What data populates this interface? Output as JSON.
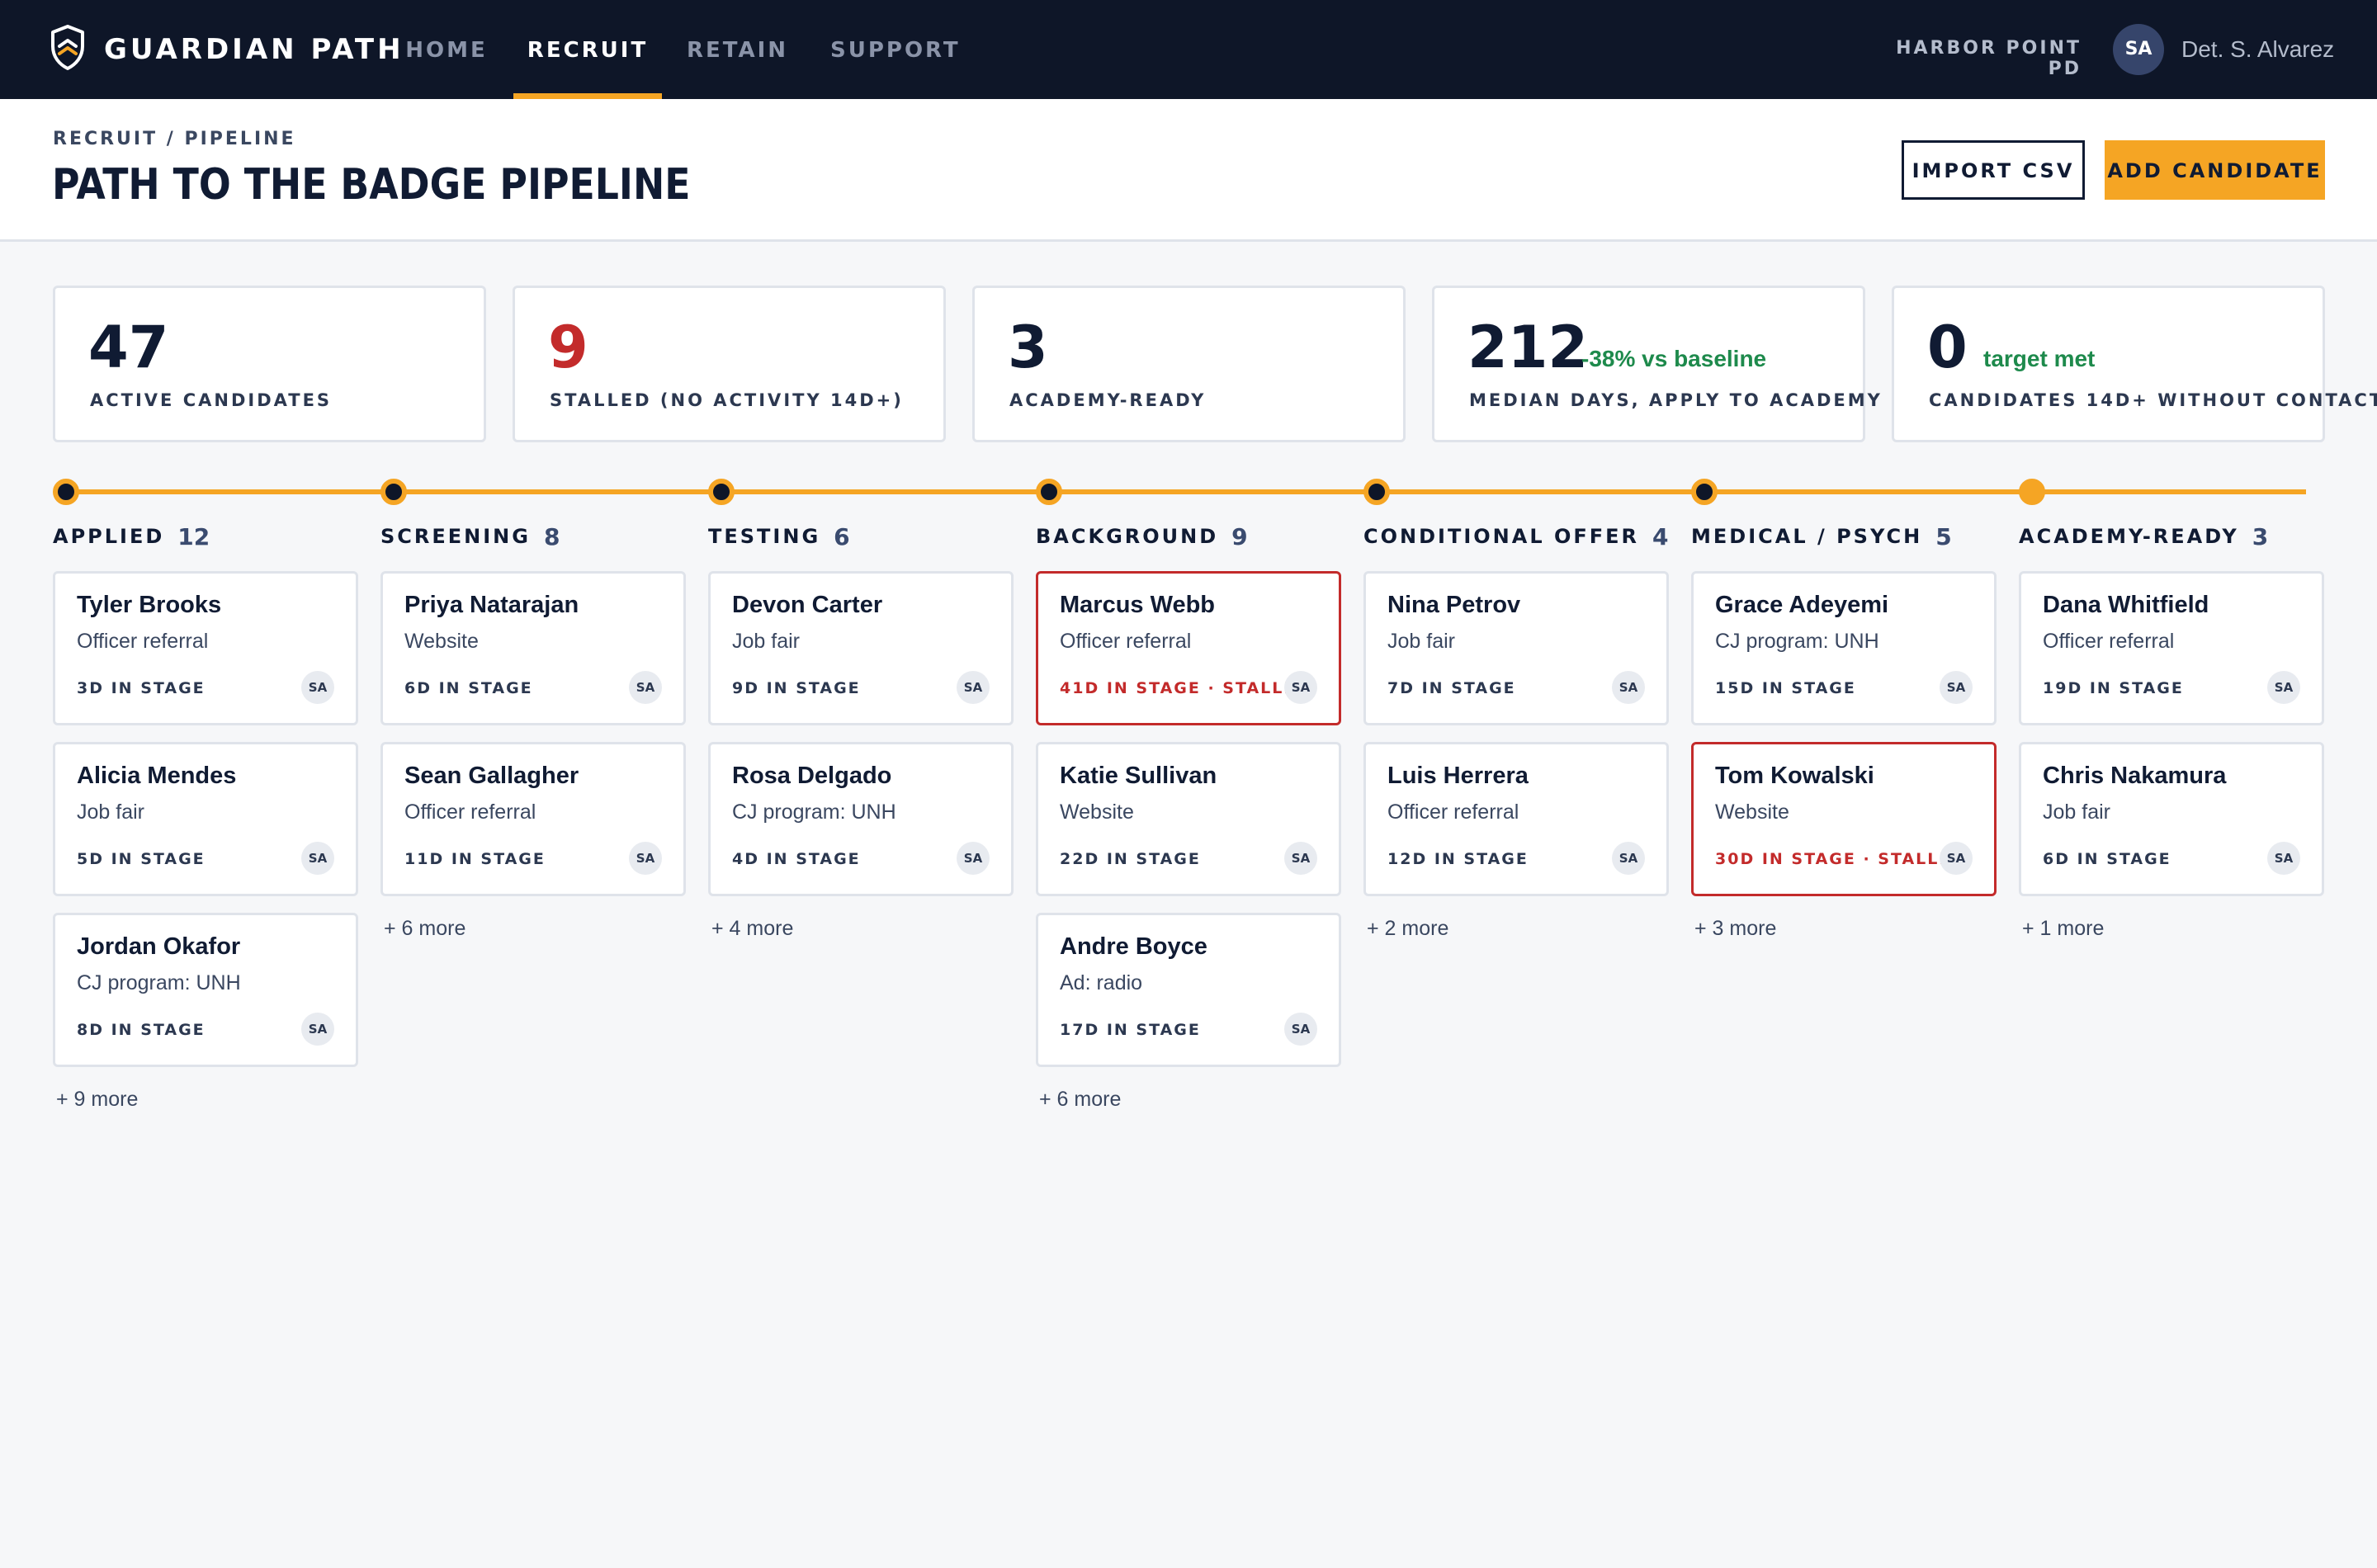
{
  "app": {
    "name": "GUARDIAN PATH",
    "logo_icon": "shield-chevron-icon"
  },
  "nav": [
    {
      "label": "HOME",
      "active": false
    },
    {
      "label": "RECRUIT",
      "active": true
    },
    {
      "label": "RETAIN",
      "active": false
    },
    {
      "label": "SUPPORT",
      "active": false
    }
  ],
  "org": "HARBOR POINT PD",
  "user": {
    "initials": "SA",
    "name": "Det. S. Alvarez"
  },
  "header": {
    "breadcrumb": "RECRUIT / PIPELINE",
    "title": "PATH TO THE BADGE PIPELINE",
    "import_label": "IMPORT CSV",
    "add_label": "ADD CANDIDATE"
  },
  "kpis": [
    {
      "value": "47",
      "label": "ACTIVE CANDIDATES",
      "delta": "",
      "alert": false
    },
    {
      "value": "9",
      "label": "STALLED (NO ACTIVITY 14D+)",
      "delta": "",
      "alert": true
    },
    {
      "value": "3",
      "label": "ACADEMY-READY",
      "delta": "",
      "alert": false
    },
    {
      "value": "212",
      "label": "MEDIAN DAYS, APPLY TO ACADEMY",
      "delta": "-38% vs baseline",
      "alert": false
    },
    {
      "value": "0",
      "label": "CANDIDATES 14D+ WITHOUT CONTACT",
      "delta": "target met",
      "alert": false
    }
  ],
  "colors": {
    "accent": "#f5a524",
    "navy": "#0e1628",
    "alert": "#c32b2b",
    "positive": "#1e8a4c"
  },
  "stages": [
    {
      "title": "APPLIED",
      "count": "12",
      "more": "+ 9 more",
      "cards": [
        {
          "name": "Tyler Brooks",
          "source": "Officer referral",
          "meta": "3D IN STAGE",
          "stalled": false,
          "owner": "SA"
        },
        {
          "name": "Alicia Mendes",
          "source": "Job fair",
          "meta": "5D IN STAGE",
          "stalled": false,
          "owner": "SA"
        },
        {
          "name": "Jordan Okafor",
          "source": "CJ program: UNH",
          "meta": "8D IN STAGE",
          "stalled": false,
          "owner": "SA"
        }
      ]
    },
    {
      "title": "SCREENING",
      "count": "8",
      "more": "+ 6 more",
      "cards": [
        {
          "name": "Priya Natarajan",
          "source": "Website",
          "meta": "6D IN STAGE",
          "stalled": false,
          "owner": "SA"
        },
        {
          "name": "Sean Gallagher",
          "source": "Officer referral",
          "meta": "11D IN STAGE",
          "stalled": false,
          "owner": "SA"
        }
      ]
    },
    {
      "title": "TESTING",
      "count": "6",
      "more": "+ 4 more",
      "cards": [
        {
          "name": "Devon Carter",
          "source": "Job fair",
          "meta": "9D IN STAGE",
          "stalled": false,
          "owner": "SA"
        },
        {
          "name": "Rosa Delgado",
          "source": "CJ program: UNH",
          "meta": "4D IN STAGE",
          "stalled": false,
          "owner": "SA"
        }
      ]
    },
    {
      "title": "BACKGROUND",
      "count": "9",
      "more": "+ 6 more",
      "cards": [
        {
          "name": "Marcus Webb",
          "source": "Officer referral",
          "meta": "41D IN STAGE · STALLED",
          "stalled": true,
          "owner": "SA"
        },
        {
          "name": "Katie Sullivan",
          "source": "Website",
          "meta": "22D IN STAGE",
          "stalled": false,
          "owner": "SA"
        },
        {
          "name": "Andre Boyce",
          "source": "Ad: radio",
          "meta": "17D IN STAGE",
          "stalled": false,
          "owner": "SA"
        }
      ]
    },
    {
      "title": "CONDITIONAL OFFER",
      "count": "4",
      "more": "+ 2 more",
      "cards": [
        {
          "name": "Nina Petrov",
          "source": "Job fair",
          "meta": "7D IN STAGE",
          "stalled": false,
          "owner": "SA"
        },
        {
          "name": "Luis Herrera",
          "source": "Officer referral",
          "meta": "12D IN STAGE",
          "stalled": false,
          "owner": "SA"
        }
      ]
    },
    {
      "title": "MEDICAL / PSYCH",
      "count": "5",
      "more": "+ 3 more",
      "cards": [
        {
          "name": "Grace Adeyemi",
          "source": "CJ program: UNH",
          "meta": "15D IN STAGE",
          "stalled": false,
          "owner": "SA"
        },
        {
          "name": "Tom Kowalski",
          "source": "Website",
          "meta": "30D IN STAGE · STALLED",
          "stalled": true,
          "owner": "SA"
        }
      ]
    },
    {
      "title": "ACADEMY-READY",
      "count": "3",
      "more": "+ 1 more",
      "cards": [
        {
          "name": "Dana Whitfield",
          "source": "Officer referral",
          "meta": "19D IN STAGE",
          "stalled": false,
          "owner": "SA"
        },
        {
          "name": "Chris Nakamura",
          "source": "Job fair",
          "meta": "6D IN STAGE",
          "stalled": false,
          "owner": "SA"
        }
      ]
    }
  ]
}
